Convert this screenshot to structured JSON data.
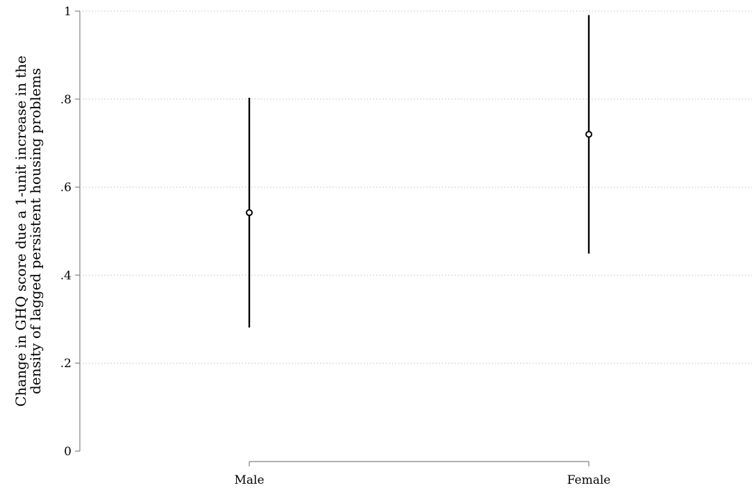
{
  "chart_data": {
    "type": "scatter",
    "title": "",
    "categories": [
      "Male",
      "Female"
    ],
    "points": [
      {
        "category": "Male",
        "estimate": 0.542,
        "ci_low": 0.281,
        "ci_high": 0.803
      },
      {
        "category": "Female",
        "estimate": 0.72,
        "ci_low": 0.449,
        "ci_high": 0.991
      }
    ],
    "ylabel_lines": [
      "Change in GHQ score due a 1-unit increase in the",
      "density of lagged persistent housing problems"
    ],
    "xlabel": "",
    "ylim": [
      0,
      1
    ],
    "yticks": [
      0,
      0.2,
      0.4,
      0.6,
      0.8,
      1
    ],
    "ytick_labels": [
      "0",
      ".2",
      ".4",
      ".6",
      ".8",
      "1"
    ],
    "grid": "horizontal-dotted",
    "legend": "none",
    "colors": {
      "marks": "#000000",
      "axis": "#808080",
      "grid": "#bcbcbc"
    }
  }
}
